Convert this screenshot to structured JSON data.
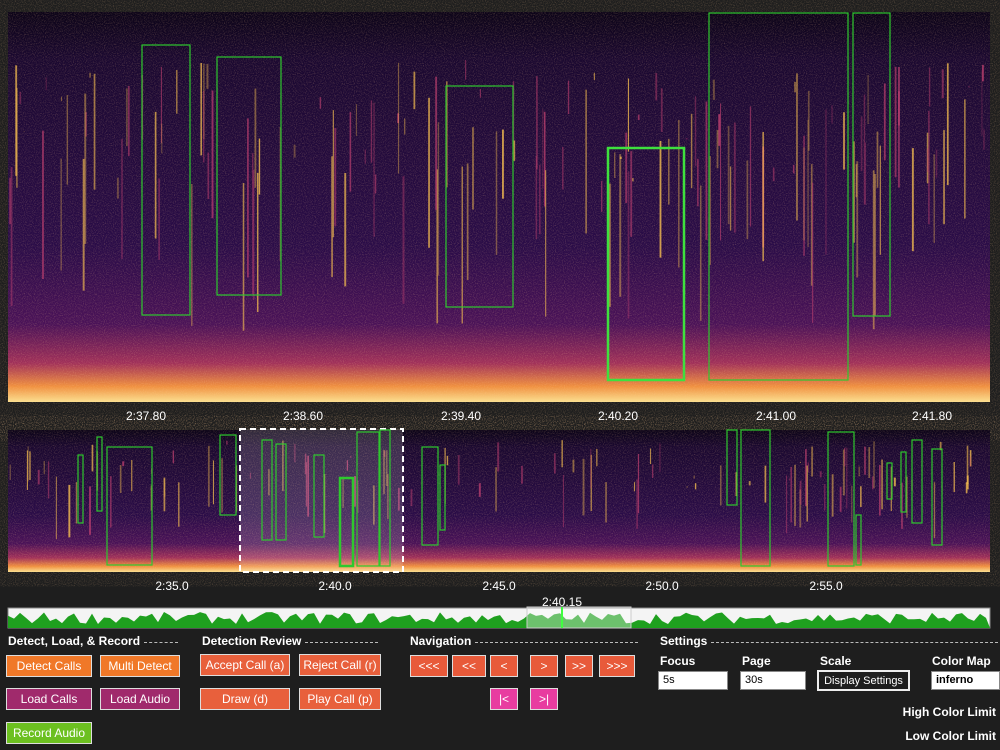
{
  "main_view": {
    "time_labels": [
      "2:37.80",
      "2:38.60",
      "2:39.40",
      "2:40.20",
      "2:41.00",
      "2:41.80"
    ]
  },
  "overview": {
    "time_labels": [
      "2:35.0",
      "2:40.0",
      "2:45.0",
      "2:50.0",
      "2:55.0"
    ]
  },
  "timeline": {
    "position_label": "2:40.15"
  },
  "panels": {
    "detect": {
      "title": "Detect, Load, & Record",
      "buttons": [
        "Detect Calls",
        "Multi Detect",
        "Load Calls",
        "Load Audio",
        "Record Audio"
      ]
    },
    "review": {
      "title": "Detection Review",
      "buttons": [
        "Accept Call (a)",
        "Reject Call (r)",
        "Draw (d)",
        "Play Call (p)"
      ]
    },
    "navigation": {
      "title": "Navigation",
      "buttons": [
        "<<<",
        "<<",
        "<",
        ">",
        ">>",
        ">>>",
        "|<",
        ">|"
      ]
    },
    "settings": {
      "title": "Settings",
      "focus_label": "Focus",
      "focus_value": "5s",
      "page_label": "Page",
      "page_value": "30s",
      "scale_label": "Scale",
      "scale_button": "Display Settings",
      "colormap_label": "Color Map",
      "colormap_value": "inferno",
      "high_limit_label": "High Color Limit",
      "low_limit_label": "Low Color Limit"
    }
  }
}
